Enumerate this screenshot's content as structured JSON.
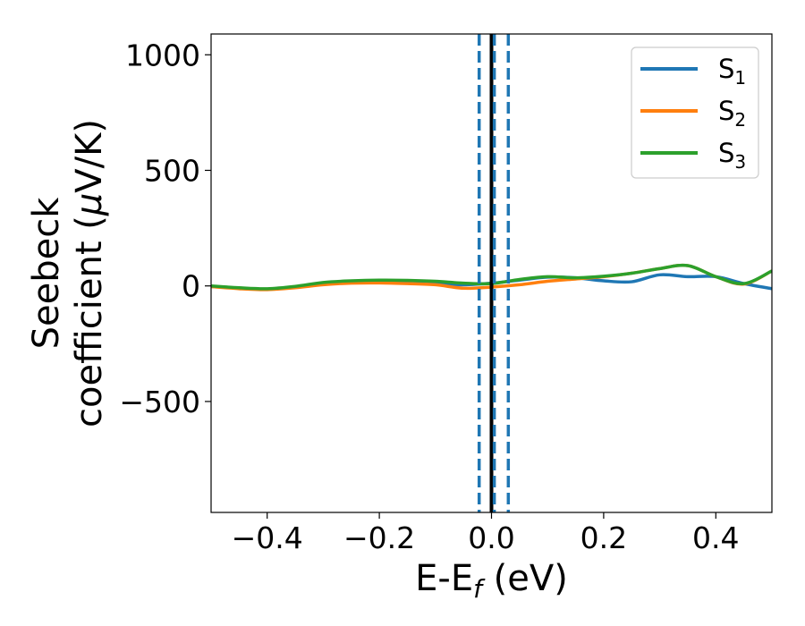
{
  "chart_data": {
    "type": "line",
    "xlabel_main": "E-E",
    "xlabel_sub": "f",
    "xlabel_unit": " (eV)",
    "ylabel_line1": "Seebeck",
    "ylabel_line2_prefix": "coefficient  (",
    "ylabel_mu": "μ",
    "ylabel_line2_suffix": "V/K)",
    "xlim": [
      -0.5,
      0.5
    ],
    "ylim": [
      -980,
      1090
    ],
    "xticks": [
      -0.4,
      -0.2,
      0.0,
      0.2,
      0.4
    ],
    "xtick_labels": [
      "−0.4",
      "−0.2",
      "0.0",
      "0.2",
      "0.4"
    ],
    "yticks": [
      -500,
      0,
      500,
      1000
    ],
    "ytick_labels": [
      "−500",
      "0",
      "500",
      "1000"
    ],
    "grid": false,
    "legend_position": "top-right",
    "vertical_lines": [
      {
        "x": 0.0,
        "color": "#000000",
        "style": "solid"
      },
      {
        "x": -0.022,
        "color": "#1f77b4",
        "style": "dashed"
      },
      {
        "x": 0.005,
        "color": "#1f77b4",
        "style": "dashed"
      },
      {
        "x": 0.03,
        "color": "#1f77b4",
        "style": "dashed"
      }
    ],
    "x": [
      -0.5,
      -0.45,
      -0.4,
      -0.35,
      -0.3,
      -0.25,
      -0.2,
      -0.15,
      -0.1,
      -0.05,
      0.0,
      0.05,
      0.1,
      0.15,
      0.2,
      0.25,
      0.3,
      0.35,
      0.4,
      0.45,
      0.5
    ],
    "series": [
      {
        "name": "S",
        "sub": "1",
        "color": "#1f77b4",
        "values": [
          -2,
          -10,
          -15,
          -5,
          8,
          15,
          16,
          12,
          8,
          5,
          12,
          25,
          38,
          35,
          22,
          18,
          48,
          40,
          40,
          10,
          -12
        ]
      },
      {
        "name": "S",
        "sub": "2",
        "color": "#ff7f0e",
        "values": [
          -3,
          -12,
          -16,
          -8,
          5,
          12,
          13,
          10,
          5,
          -10,
          -5,
          5,
          20,
          30,
          40,
          55,
          75,
          88,
          40,
          8,
          65
        ]
      },
      {
        "name": "S",
        "sub": "3",
        "color": "#2ca02c",
        "values": [
          0,
          -8,
          -12,
          -2,
          15,
          22,
          25,
          24,
          20,
          12,
          10,
          28,
          40,
          35,
          42,
          55,
          75,
          88,
          40,
          10,
          65
        ]
      }
    ]
  }
}
